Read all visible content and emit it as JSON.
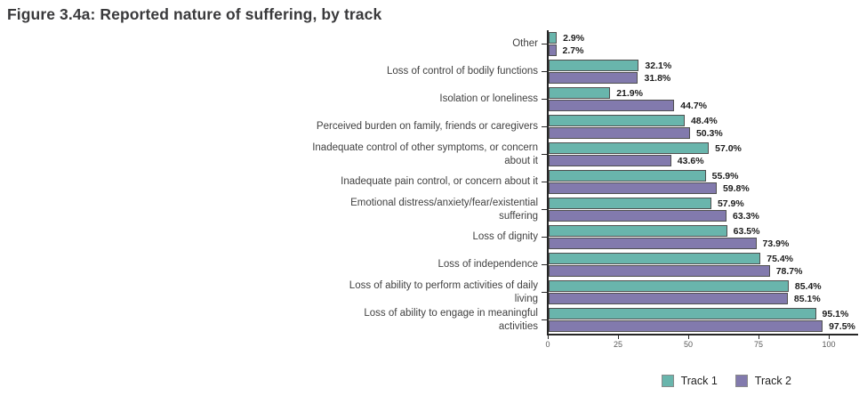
{
  "title": "Figure 3.4a: Reported nature of suffering, by track",
  "chart_data": {
    "type": "bar",
    "orientation": "horizontal",
    "title": "Figure 3.4a: Reported nature of suffering, by track",
    "categories": [
      "Other",
      "Loss of control of bodily functions",
      "Isolation or loneliness",
      "Perceived burden on family, friends or caregivers",
      "Inadequate control of other symptoms, or concern\nabout it",
      "Inadequate pain control, or concern about it",
      "Emotional distress/anxiety/fear/existential\nsuffering",
      "Loss of dignity",
      "Loss of independence",
      "Loss of ability to perform activities of daily\nliving",
      "Loss of ability to engage in meaningful\nactivities"
    ],
    "series": [
      {
        "name": "Track 1",
        "color": "#69b5ac",
        "values": [
          2.9,
          32.1,
          21.9,
          48.4,
          57.0,
          55.9,
          57.9,
          63.5,
          75.4,
          85.4,
          95.1
        ]
      },
      {
        "name": "Track 2",
        "color": "#827aad",
        "values": [
          2.7,
          31.8,
          44.7,
          50.3,
          43.6,
          59.8,
          63.3,
          73.9,
          78.7,
          85.1,
          97.5
        ]
      }
    ],
    "value_label_format": "percent_one_decimal",
    "x_ticks": [
      0,
      25,
      50,
      75,
      100
    ],
    "xlim": [
      0,
      110
    ],
    "xlabel": "",
    "ylabel": "",
    "grid": false,
    "legend_position": "bottom-right",
    "legend": [
      "Track 1",
      "Track 2"
    ]
  }
}
